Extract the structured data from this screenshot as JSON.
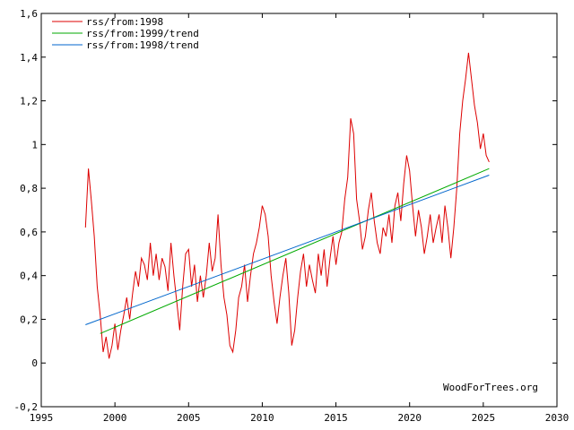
{
  "chart_data": {
    "type": "line",
    "title": "",
    "xlabel": "",
    "ylabel": "",
    "xlim": [
      1995,
      2030
    ],
    "ylim": [
      -0.2,
      1.6
    ],
    "x_ticks": [
      1995,
      2000,
      2005,
      2010,
      2015,
      2020,
      2025,
      2030
    ],
    "x_tick_labels": [
      "1995",
      "2000",
      "2005",
      "2010",
      "2015",
      "2020",
      "2025",
      "2030"
    ],
    "y_ticks": [
      -0.2,
      0,
      0.2,
      0.4,
      0.6,
      0.8,
      1.0,
      1.2,
      1.4,
      1.6
    ],
    "y_tick_labels": [
      "-0,2",
      "0",
      "0,2",
      "0,4",
      "0,6",
      "0,8",
      "1",
      "1,2",
      "1,4",
      "1,6"
    ],
    "grid": false,
    "legend_position": "top-left",
    "credit": "WoodForTrees.org",
    "series": [
      {
        "name": "rss/from:1998",
        "color": "#dd0000",
        "x": [
          1998.0,
          1998.2,
          1998.4,
          1998.6,
          1998.8,
          1999.0,
          1999.2,
          1999.4,
          1999.6,
          1999.8,
          2000.0,
          2000.2,
          2000.4,
          2000.6,
          2000.8,
          2001.0,
          2001.2,
          2001.4,
          2001.6,
          2001.8,
          2002.0,
          2002.2,
          2002.4,
          2002.6,
          2002.8,
          2003.0,
          2003.2,
          2003.4,
          2003.6,
          2003.8,
          2004.0,
          2004.2,
          2004.4,
          2004.6,
          2004.8,
          2005.0,
          2005.2,
          2005.4,
          2005.6,
          2005.8,
          2006.0,
          2006.2,
          2006.4,
          2006.6,
          2006.8,
          2007.0,
          2007.2,
          2007.4,
          2007.6,
          2007.8,
          2008.0,
          2008.2,
          2008.4,
          2008.6,
          2008.8,
          2009.0,
          2009.2,
          2009.4,
          2009.6,
          2009.8,
          2010.0,
          2010.2,
          2010.4,
          2010.6,
          2010.8,
          2011.0,
          2011.2,
          2011.4,
          2011.6,
          2011.8,
          2012.0,
          2012.2,
          2012.4,
          2012.6,
          2012.8,
          2013.0,
          2013.2,
          2013.4,
          2013.6,
          2013.8,
          2014.0,
          2014.2,
          2014.4,
          2014.6,
          2014.8,
          2015.0,
          2015.2,
          2015.4,
          2015.6,
          2015.8,
          2016.0,
          2016.2,
          2016.4,
          2016.6,
          2016.8,
          2017.0,
          2017.2,
          2017.4,
          2017.6,
          2017.8,
          2018.0,
          2018.2,
          2018.4,
          2018.6,
          2018.8,
          2019.0,
          2019.2,
          2019.4,
          2019.6,
          2019.8,
          2020.0,
          2020.2,
          2020.4,
          2020.6,
          2020.8,
          2021.0,
          2021.2,
          2021.4,
          2021.6,
          2021.8,
          2022.0,
          2022.2,
          2022.4,
          2022.6,
          2022.8,
          2023.0,
          2023.2,
          2023.4,
          2023.6,
          2023.8,
          2024.0,
          2024.2,
          2024.4,
          2024.6,
          2024.8,
          2025.0,
          2025.2,
          2025.4
        ],
        "y": [
          0.62,
          0.89,
          0.74,
          0.58,
          0.35,
          0.22,
          0.05,
          0.12,
          0.02,
          0.08,
          0.18,
          0.06,
          0.15,
          0.22,
          0.3,
          0.2,
          0.32,
          0.42,
          0.35,
          0.48,
          0.45,
          0.38,
          0.55,
          0.4,
          0.5,
          0.38,
          0.48,
          0.44,
          0.33,
          0.55,
          0.4,
          0.28,
          0.15,
          0.35,
          0.5,
          0.52,
          0.35,
          0.45,
          0.28,
          0.4,
          0.3,
          0.4,
          0.55,
          0.42,
          0.48,
          0.68,
          0.45,
          0.3,
          0.22,
          0.08,
          0.05,
          0.15,
          0.3,
          0.35,
          0.45,
          0.28,
          0.4,
          0.5,
          0.55,
          0.62,
          0.72,
          0.68,
          0.58,
          0.4,
          0.28,
          0.18,
          0.3,
          0.4,
          0.48,
          0.32,
          0.08,
          0.15,
          0.3,
          0.42,
          0.5,
          0.35,
          0.45,
          0.38,
          0.32,
          0.5,
          0.4,
          0.52,
          0.35,
          0.48,
          0.58,
          0.45,
          0.55,
          0.6,
          0.75,
          0.85,
          1.12,
          1.05,
          0.75,
          0.65,
          0.52,
          0.58,
          0.7,
          0.78,
          0.65,
          0.55,
          0.5,
          0.62,
          0.58,
          0.68,
          0.55,
          0.72,
          0.78,
          0.65,
          0.82,
          0.95,
          0.88,
          0.72,
          0.58,
          0.7,
          0.62,
          0.5,
          0.58,
          0.68,
          0.55,
          0.62,
          0.68,
          0.55,
          0.72,
          0.62,
          0.48,
          0.62,
          0.8,
          1.05,
          1.2,
          1.3,
          1.42,
          1.3,
          1.18,
          1.1,
          0.98,
          1.05,
          0.95,
          0.92
        ]
      },
      {
        "name": "rss/from:1999/trend",
        "color": "#00aa00",
        "x": [
          1999.0,
          2025.4
        ],
        "y": [
          0.135,
          0.89
        ]
      },
      {
        "name": "rss/from:1998/trend",
        "color": "#0066cc",
        "x": [
          1998.0,
          2025.4
        ],
        "y": [
          0.175,
          0.86
        ]
      }
    ]
  }
}
